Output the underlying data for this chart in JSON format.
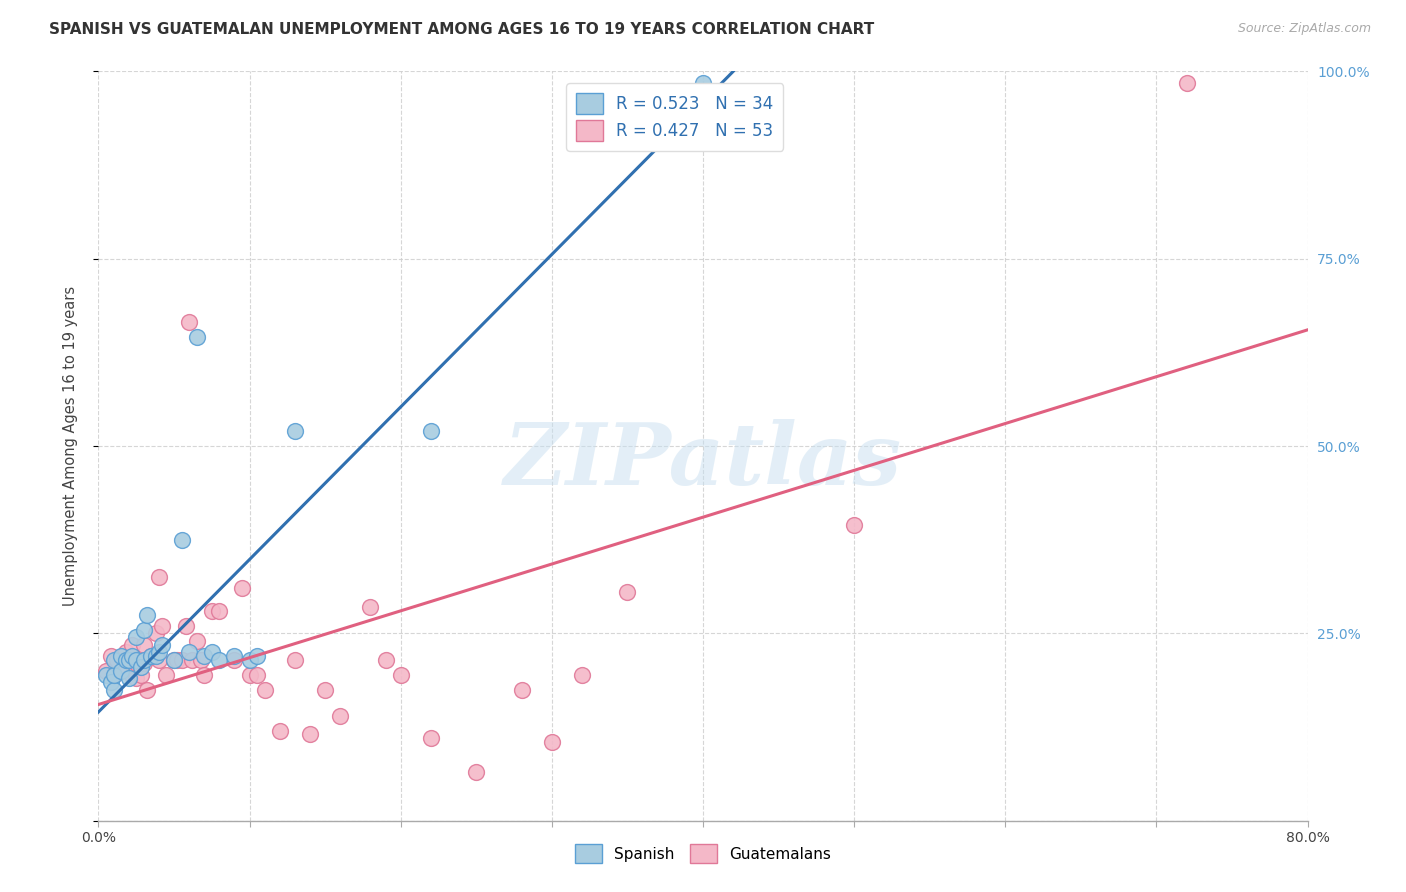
{
  "title": "SPANISH VS GUATEMALAN UNEMPLOYMENT AMONG AGES 16 TO 19 YEARS CORRELATION CHART",
  "source": "Source: ZipAtlas.com",
  "ylabel": "Unemployment Among Ages 16 to 19 years",
  "xlim": [
    0.0,
    0.8
  ],
  "ylim": [
    0.0,
    1.0
  ],
  "xticks": [
    0.0,
    0.1,
    0.2,
    0.3,
    0.4,
    0.5,
    0.6,
    0.7,
    0.8
  ],
  "yticks": [
    0.0,
    0.25,
    0.5,
    0.75,
    1.0
  ],
  "yticklabels_right": [
    "",
    "25.0%",
    "50.0%",
    "75.0%",
    "100.0%"
  ],
  "spanish_R": 0.523,
  "spanish_N": 34,
  "guatemalan_R": 0.427,
  "guatemalan_N": 53,
  "spanish_color": "#a8cce0",
  "guatemalan_color": "#f4b8c8",
  "spanish_edge_color": "#5a9fd4",
  "guatemalan_edge_color": "#e07898",
  "spanish_line_color": "#3070b0",
  "guatemalan_line_color": "#e06080",
  "spanish_line_x": [
    0.0,
    0.42
  ],
  "spanish_line_y": [
    0.145,
    1.0
  ],
  "guatemalan_line_x": [
    0.0,
    0.8
  ],
  "guatemalan_line_y": [
    0.155,
    0.655
  ],
  "spanish_x": [
    0.005,
    0.008,
    0.01,
    0.01,
    0.01,
    0.015,
    0.015,
    0.018,
    0.02,
    0.02,
    0.022,
    0.025,
    0.025,
    0.028,
    0.03,
    0.03,
    0.032,
    0.035,
    0.038,
    0.04,
    0.042,
    0.05,
    0.055,
    0.06,
    0.065,
    0.07,
    0.075,
    0.08,
    0.09,
    0.1,
    0.105,
    0.13,
    0.22,
    0.4
  ],
  "spanish_y": [
    0.195,
    0.185,
    0.175,
    0.195,
    0.215,
    0.2,
    0.22,
    0.215,
    0.19,
    0.215,
    0.22,
    0.215,
    0.245,
    0.205,
    0.215,
    0.255,
    0.275,
    0.22,
    0.22,
    0.225,
    0.235,
    0.215,
    0.375,
    0.225,
    0.645,
    0.22,
    0.225,
    0.215,
    0.22,
    0.215,
    0.22,
    0.52,
    0.52,
    0.985
  ],
  "guatemalan_x": [
    0.005,
    0.008,
    0.01,
    0.012,
    0.015,
    0.018,
    0.02,
    0.022,
    0.022,
    0.025,
    0.025,
    0.028,
    0.03,
    0.03,
    0.032,
    0.035,
    0.038,
    0.04,
    0.04,
    0.042,
    0.045,
    0.05,
    0.052,
    0.055,
    0.058,
    0.06,
    0.062,
    0.065,
    0.068,
    0.07,
    0.075,
    0.08,
    0.09,
    0.095,
    0.1,
    0.105,
    0.11,
    0.12,
    0.13,
    0.14,
    0.15,
    0.16,
    0.18,
    0.19,
    0.2,
    0.22,
    0.25,
    0.28,
    0.3,
    0.32,
    0.35,
    0.5,
    0.72
  ],
  "guatemalan_y": [
    0.2,
    0.22,
    0.195,
    0.215,
    0.2,
    0.225,
    0.215,
    0.195,
    0.235,
    0.19,
    0.21,
    0.195,
    0.21,
    0.235,
    0.175,
    0.22,
    0.25,
    0.215,
    0.325,
    0.26,
    0.195,
    0.215,
    0.215,
    0.215,
    0.26,
    0.665,
    0.215,
    0.24,
    0.215,
    0.195,
    0.28,
    0.28,
    0.215,
    0.31,
    0.195,
    0.195,
    0.175,
    0.12,
    0.215,
    0.115,
    0.175,
    0.14,
    0.285,
    0.215,
    0.195,
    0.11,
    0.065,
    0.175,
    0.105,
    0.195,
    0.305,
    0.395,
    0.985
  ],
  "watermark_text": "ZIPatlas",
  "background_color": "#ffffff",
  "grid_color": "#cccccc"
}
